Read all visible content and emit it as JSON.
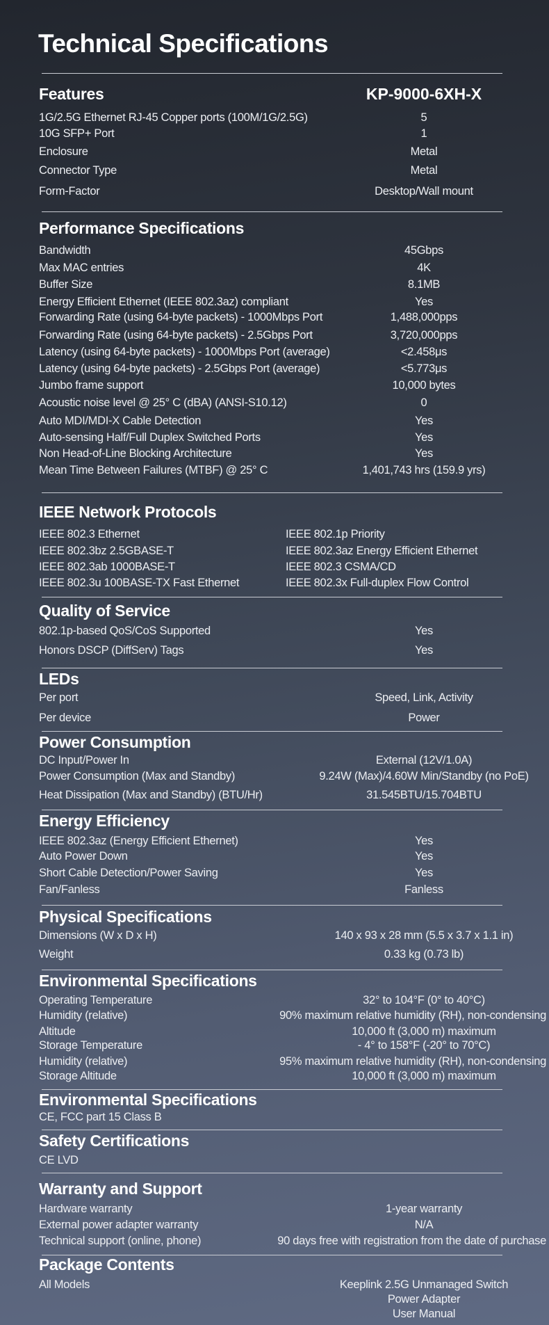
{
  "title": "Technical Specifications",
  "features": {
    "heading": "Features",
    "model": "KP-9000-6XH-X",
    "rows": [
      {
        "label": "1G/2.5G Ethernet RJ-45 Copper ports (100M/1G/2.5G)",
        "value": "5"
      },
      {
        "label": "10G SFP+ Port",
        "value": "1"
      },
      {
        "label": "Enclosure",
        "value": "Metal"
      },
      {
        "label": "Connector Type",
        "value": "Metal"
      },
      {
        "label": "Form-Factor",
        "value": "Desktop/Wall mount"
      }
    ]
  },
  "performance": {
    "heading": "Performance Specifications",
    "rows": [
      {
        "label": "Bandwidth",
        "value": "45Gbps"
      },
      {
        "label": "Max MAC entries",
        "value": "4K"
      },
      {
        "label": "Buffer Size",
        "value": "8.1MB"
      },
      {
        "label": "Energy Efficient Ethernet (IEEE 802.3az) compliant",
        "value": "Yes"
      },
      {
        "label": "Forwarding Rate (using 64-byte packets) - 1000Mbps Port",
        "value": "1,488,000pps"
      },
      {
        "label": "Forwarding Rate (using 64-byte packets) - 2.5Gbps Port",
        "value": "3,720,000pps"
      },
      {
        "label": "Latency (using 64-byte packets) - 1000Mbps Port (average)",
        "value": "<2.458μs"
      },
      {
        "label": "Latency (using 64-byte packets) - 2.5Gbps Port (average)",
        "value": "<5.773μs"
      },
      {
        "label": "Jumbo frame support",
        "value": "10,000 bytes"
      },
      {
        "label": "Acoustic noise level @ 25° C (dBA) (ANSI-S10.12)",
        "value": "0"
      },
      {
        "label": "Auto MDI/MDI-X Cable Detection",
        "value": "Yes"
      },
      {
        "label": "Auto-sensing Half/Full Duplex Switched Ports",
        "value": "Yes"
      },
      {
        "label": "Non Head-of-Line Blocking Architecture",
        "value": "Yes"
      },
      {
        "label": "Mean Time Between Failures (MTBF) @ 25° C",
        "value": "1,401,743 hrs (159.9 yrs)"
      }
    ]
  },
  "ieee": {
    "heading": "IEEE Network Protocols",
    "rows": [
      {
        "left": "IEEE 802.3 Ethernet",
        "right": "IEEE 802.1p Priority"
      },
      {
        "left": "IEEE 802.3bz 2.5GBASE-T",
        "right": "IEEE 802.3az Energy Efficient Ethernet"
      },
      {
        "left": "IEEE 802.3ab 1000BASE-T",
        "right": "IEEE 802.3 CSMA/CD"
      },
      {
        "left": "IEEE 802.3u 100BASE-TX Fast Ethernet",
        "right": "IEEE 802.3x Full-duplex Flow Control"
      }
    ]
  },
  "qos": {
    "heading": "Quality of Service",
    "rows": [
      {
        "label": "802.1p-based QoS/CoS Supported",
        "value": "Yes"
      },
      {
        "label": "Honors DSCP (DiffServ) Tags",
        "value": "Yes"
      }
    ]
  },
  "leds": {
    "heading": "LEDs",
    "rows": [
      {
        "label": "Per port",
        "value": "Speed, Link, Activity"
      },
      {
        "label": "Per device",
        "value": "Power"
      }
    ]
  },
  "power": {
    "heading": "Power Consumption",
    "rows": [
      {
        "label": "DC Input/Power In",
        "value": "External (12V/1.0A)"
      },
      {
        "label": "Power Consumption (Max and Standby)",
        "value": "9.24W (Max)/4.60W Min/Standby (no PoE)"
      },
      {
        "label": "Heat Dissipation (Max and Standby) (BTU/Hr)",
        "value": "31.545BTU/15.704BTU"
      }
    ]
  },
  "energy": {
    "heading": "Energy Efficiency",
    "rows": [
      {
        "label": "IEEE 802.3az (Energy Efficient Ethernet)",
        "value": "Yes"
      },
      {
        "label": "Auto Power Down",
        "value": "Yes"
      },
      {
        "label": "Short Cable Detection/Power Saving",
        "value": "Yes"
      },
      {
        "label": "Fan/Fanless",
        "value": "Fanless"
      }
    ]
  },
  "physical": {
    "heading": "Physical Specifications",
    "rows": [
      {
        "label": "Dimensions (W x D x H)",
        "value": "140 x 93 x 28 mm (5.5 x 3.7 x 1.1 in)"
      },
      {
        "label": "Weight",
        "value": "0.33 kg (0.73 lb)"
      }
    ]
  },
  "environmental": {
    "heading": "Environmental Specifications",
    "rows": [
      {
        "label": "Operating Temperature",
        "value": "32° to 104°F (0° to 40°C)"
      },
      {
        "label": "Humidity (relative)",
        "value": "90% maximum relative humidity (RH), non-condensing"
      },
      {
        "label": "Altitude",
        "value": "10,000 ft (3,000 m) maximum"
      },
      {
        "label": "Storage Temperature",
        "value": "- 4° to 158°F (-20° to 70°C)"
      },
      {
        "label": "Humidity (relative)",
        "value": "95% maximum relative humidity (RH), non-condensing"
      },
      {
        "label": "Storage Altitude",
        "value": "10,000 ft (3,000 m) maximum"
      }
    ]
  },
  "environmental2": {
    "heading": "Environmental Specifications",
    "rows": [
      {
        "label": "CE, FCC part 15 Class B",
        "value": ""
      }
    ]
  },
  "safety": {
    "heading": "Safety Certifications",
    "rows": [
      {
        "label": "CE LVD",
        "value": ""
      }
    ]
  },
  "warranty": {
    "heading": "Warranty and Support",
    "rows": [
      {
        "label": "Hardware warranty",
        "value": "1-year warranty"
      },
      {
        "label": "External power adapter warranty",
        "value": "N/A"
      },
      {
        "label": "Technical support (online, phone)",
        "value": "90 days free with registration from the date of purchase"
      }
    ]
  },
  "package": {
    "heading": "Package Contents",
    "rows": [
      {
        "label": "All Models",
        "value": "Keeplink 2.5G Unmanaged Switch"
      },
      {
        "label": "",
        "value": "Power Adapter"
      },
      {
        "label": "",
        "value": "User Manual"
      }
    ]
  }
}
